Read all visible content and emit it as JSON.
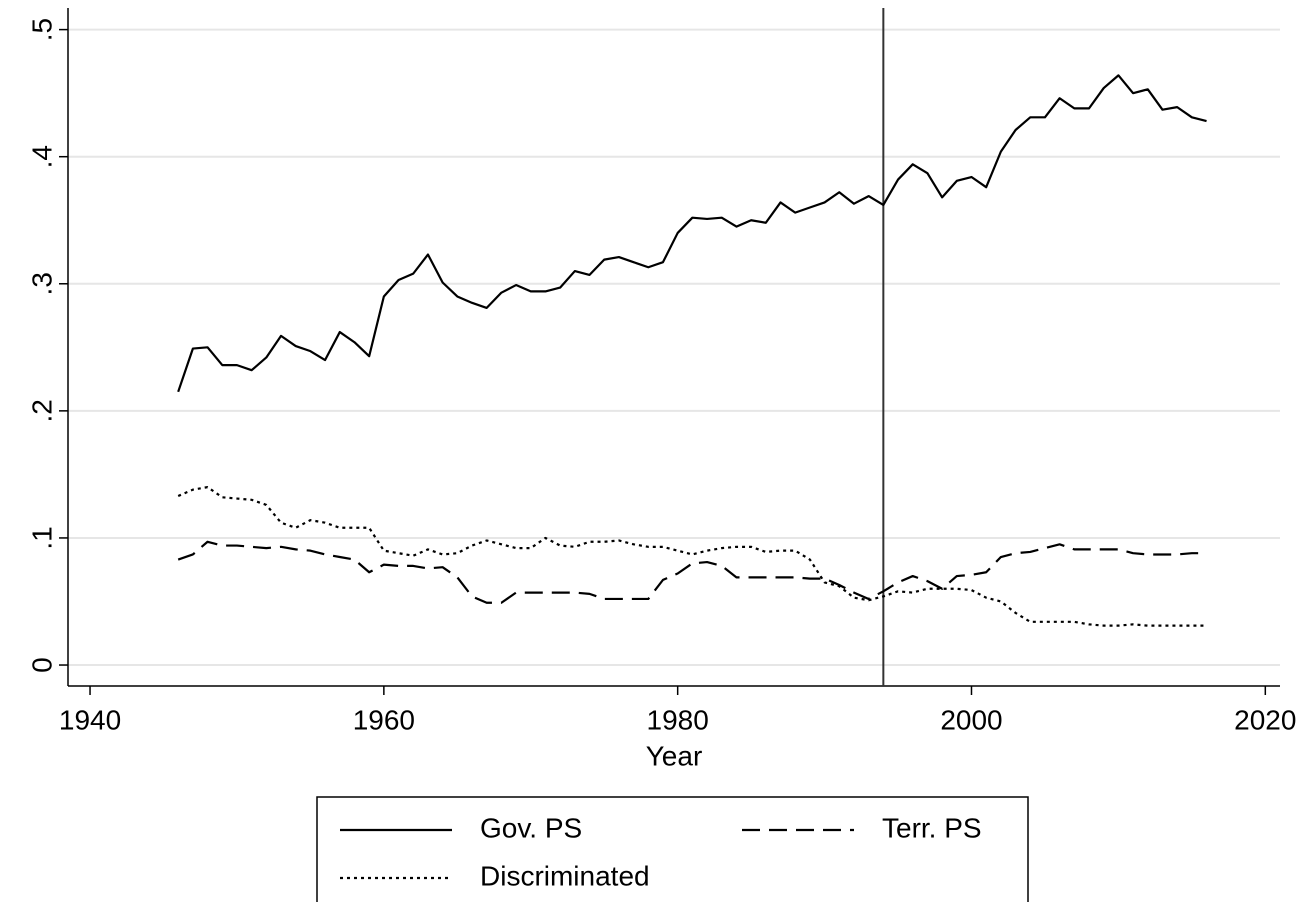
{
  "chart_data": {
    "type": "line",
    "x_label": "Year",
    "x": [
      1946,
      1947,
      1948,
      1949,
      1950,
      1951,
      1952,
      1953,
      1954,
      1955,
      1956,
      1957,
      1958,
      1959,
      1960,
      1961,
      1962,
      1963,
      1964,
      1965,
      1966,
      1967,
      1968,
      1969,
      1970,
      1971,
      1972,
      1973,
      1974,
      1975,
      1976,
      1977,
      1978,
      1979,
      1980,
      1981,
      1982,
      1983,
      1984,
      1985,
      1986,
      1987,
      1988,
      1989,
      1990,
      1991,
      1992,
      1993,
      1994,
      1995,
      1996,
      1997,
      1998,
      1999,
      2000,
      2001,
      2002,
      2003,
      2004,
      2005,
      2006,
      2007,
      2008,
      2009,
      2010,
      2011,
      2012,
      2013,
      2014,
      2015,
      2016
    ],
    "series": [
      {
        "name": "Gov. PS",
        "color": "#000000",
        "dash": "solid",
        "values": [
          0.215,
          0.249,
          0.25,
          0.236,
          0.236,
          0.232,
          0.242,
          0.259,
          0.251,
          0.247,
          0.24,
          0.262,
          0.254,
          0.243,
          0.29,
          0.303,
          0.308,
          0.323,
          0.301,
          0.29,
          0.285,
          0.281,
          0.293,
          0.299,
          0.294,
          0.294,
          0.297,
          0.31,
          0.307,
          0.319,
          0.321,
          0.317,
          0.313,
          0.317,
          0.34,
          0.352,
          0.351,
          0.352,
          0.345,
          0.35,
          0.348,
          0.364,
          0.356,
          0.36,
          0.364,
          0.372,
          0.363,
          0.369,
          0.362,
          0.382,
          0.394,
          0.387,
          0.368,
          0.381,
          0.384,
          0.376,
          0.404,
          0.421,
          0.431,
          0.431,
          0.446,
          0.438,
          0.438,
          0.454,
          0.464,
          0.45,
          0.453,
          0.437,
          0.439,
          0.431,
          0.428
        ]
      },
      {
        "name": "Terr. PS",
        "color": "#000000",
        "dash": "dashed",
        "values": [
          0.083,
          0.087,
          0.097,
          0.094,
          0.094,
          0.093,
          0.092,
          0.093,
          0.091,
          0.09,
          0.087,
          0.085,
          0.083,
          0.073,
          0.079,
          0.078,
          0.078,
          0.076,
          0.077,
          0.069,
          0.054,
          0.049,
          0.049,
          0.057,
          0.057,
          0.057,
          0.057,
          0.057,
          0.056,
          0.052,
          0.052,
          0.052,
          0.052,
          0.067,
          0.072,
          0.08,
          0.081,
          0.078,
          0.069,
          0.069,
          0.069,
          0.069,
          0.069,
          0.068,
          0.068,
          0.063,
          0.057,
          0.052,
          0.058,
          0.065,
          0.07,
          0.066,
          0.06,
          0.07,
          0.071,
          0.073,
          0.085,
          0.088,
          0.089,
          0.092,
          0.095,
          0.091,
          0.091,
          0.091,
          0.091,
          0.088,
          0.087,
          0.087,
          0.087,
          0.088,
          0.088
        ]
      },
      {
        "name": "Discriminated",
        "color": "#000000",
        "dash": "dotted",
        "values": [
          0.133,
          0.138,
          0.14,
          0.132,
          0.131,
          0.13,
          0.126,
          0.112,
          0.108,
          0.114,
          0.112,
          0.108,
          0.108,
          0.108,
          0.09,
          0.088,
          0.086,
          0.091,
          0.087,
          0.088,
          0.094,
          0.098,
          0.095,
          0.092,
          0.092,
          0.1,
          0.094,
          0.093,
          0.097,
          0.097,
          0.098,
          0.095,
          0.093,
          0.093,
          0.09,
          0.087,
          0.09,
          0.092,
          0.093,
          0.093,
          0.089,
          0.09,
          0.09,
          0.083,
          0.065,
          0.062,
          0.053,
          0.051,
          0.054,
          0.058,
          0.057,
          0.06,
          0.06,
          0.06,
          0.059,
          0.053,
          0.05,
          0.041,
          0.034,
          0.034,
          0.034,
          0.034,
          0.032,
          0.031,
          0.031,
          0.032,
          0.031,
          0.031,
          0.031,
          0.031,
          0.031
        ]
      }
    ],
    "vline": 1994,
    "xlim": [
      1938.5,
      2021
    ],
    "xticks": [
      1940,
      1960,
      1980,
      2000,
      2020
    ],
    "ylim": [
      -0.0165,
      0.517
    ],
    "yticks": [
      0,
      {
        "value": 0.1,
        "label": ".1"
      },
      {
        "value": 0.2,
        "label": ".2"
      },
      {
        "value": 0.3,
        "label": ".3"
      },
      {
        "value": 0.4,
        "label": ".4"
      },
      {
        "value": 0.5,
        "label": ".5"
      }
    ],
    "grid": true,
    "legend": "bottom"
  }
}
